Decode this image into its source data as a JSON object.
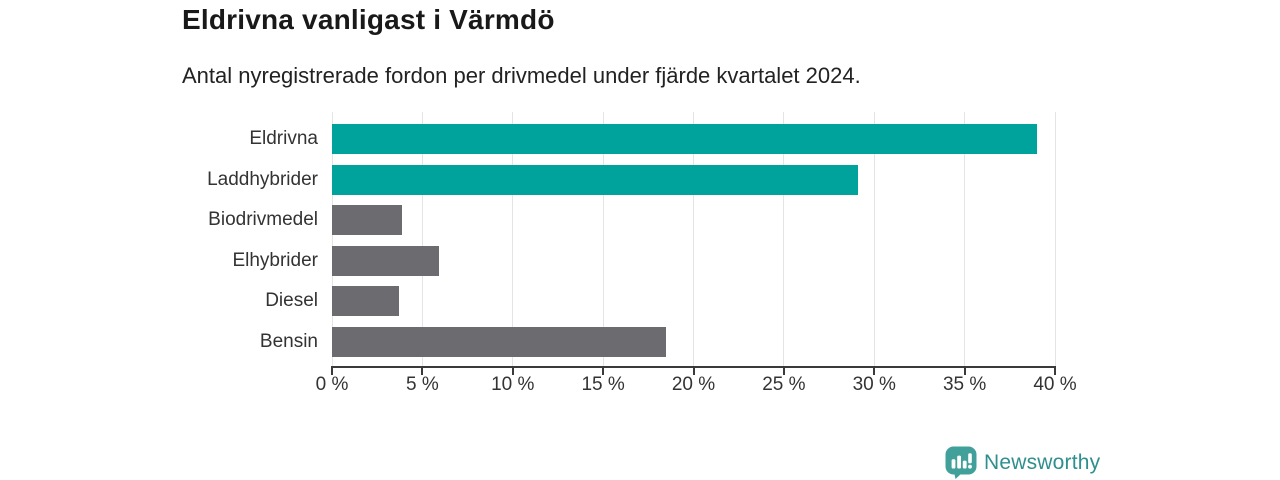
{
  "chart_data": {
    "type": "bar",
    "orientation": "horizontal",
    "title": "Eldrivna vanligast i Värmdö",
    "subtitle": "Antal nyregistrerade fordon per drivmedel under fjärde kvartalet 2024.",
    "categories": [
      "Eldrivna",
      "Laddhybrider",
      "Biodrivmedel",
      "Elhybrider",
      "Diesel",
      "Bensin"
    ],
    "values": [
      39.0,
      29.1,
      3.9,
      5.9,
      3.7,
      18.5
    ],
    "unit": "%",
    "bar_colors": [
      "#00a39b",
      "#00a39b",
      "#6c6b70",
      "#6c6b70",
      "#6c6b70",
      "#6c6b70"
    ],
    "xlabel": "",
    "ylabel": "",
    "xlim": [
      0,
      40
    ],
    "x_ticks": [
      0,
      5,
      10,
      15,
      20,
      25,
      30,
      35,
      40
    ],
    "x_tick_labels": [
      "0 %",
      "5 %",
      "10 %",
      "15 %",
      "20 %",
      "25 %",
      "30 %",
      "35 %",
      "40 %"
    ],
    "grid": "vertical-gridlines-on",
    "legend": "none",
    "value_labels": "none"
  },
  "colors": {
    "accent_teal": "#00a39b",
    "neutral_gray": "#6c6b70",
    "gridline": "#e4e4e4",
    "axis": "#3a3a3a",
    "tick_text": "#333333",
    "brand_teal": "#2e8f8e",
    "brand_icon_teal": "#41a09a"
  },
  "brand": {
    "name": "Newsworthy",
    "logo_icon": "bar-chart-speech-bubble-icon"
  }
}
